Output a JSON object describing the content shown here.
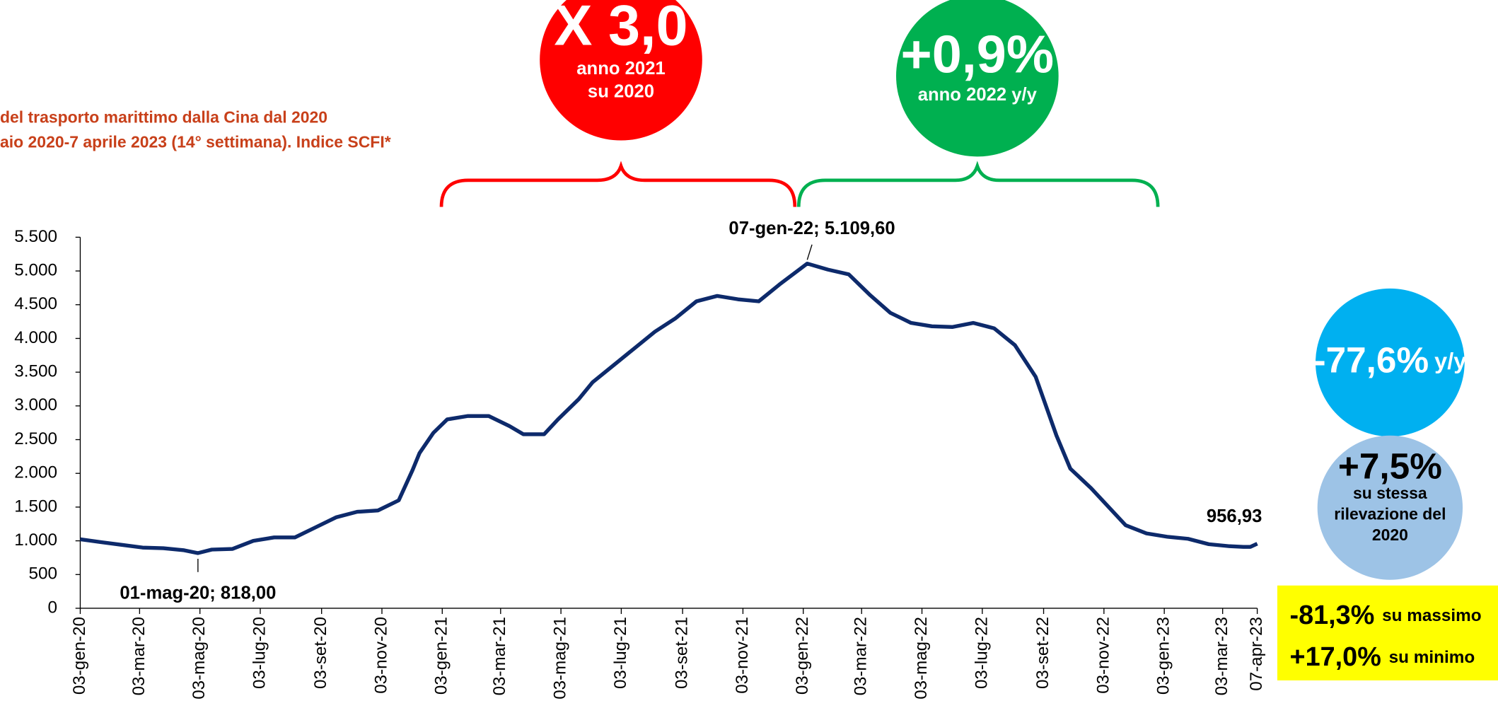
{
  "chart_data": {
    "type": "line",
    "title_lines": [
      "del trasporto marittimo dalla Cina dal 2020",
      "aio 2020-7 aprile 2023 (14° settimana). Indice SCFI*"
    ],
    "x": [
      "03-gen-20",
      "24-gen-20",
      "14-feb-20",
      "06-mar-20",
      "27-mar-20",
      "17-apr-20",
      "01-mag-20",
      "15-mag-20",
      "05-giu-20",
      "26-giu-20",
      "17-lug-20",
      "07-ago-20",
      "28-ago-20",
      "18-set-20",
      "09-ott-20",
      "30-ott-20",
      "20-nov-20",
      "04-dic-20",
      "11-dic-20",
      "25-dic-20",
      "08-gen-21",
      "29-gen-21",
      "19-feb-21",
      "12-mar-21",
      "26-mar-21",
      "16-apr-21",
      "30-apr-21",
      "21-mag-21",
      "04-giu-21",
      "25-giu-21",
      "16-lug-21",
      "06-ago-21",
      "27-ago-21",
      "17-set-21",
      "08-ott-21",
      "29-ott-21",
      "19-nov-21",
      "10-dic-21",
      "07-gen-22",
      "28-gen-22",
      "18-feb-22",
      "11-mar-22",
      "01-apr-22",
      "22-apr-22",
      "13-mag-22",
      "03-giu-22",
      "24-giu-22",
      "15-lug-22",
      "05-ago-22",
      "26-ago-22",
      "16-set-22",
      "30-set-22",
      "21-ott-22",
      "11-nov-22",
      "25-nov-22",
      "16-dic-22",
      "06-gen-23",
      "27-gen-23",
      "17-feb-23",
      "10-mar-23",
      "24-mar-23",
      "31-mar-23",
      "07-apr-23"
    ],
    "series": [
      {
        "name": "SCFI",
        "color": "#0d2a6b",
        "values": [
          1023,
          980,
          940,
          900,
          890,
          860,
          818,
          870,
          880,
          1000,
          1050,
          1050,
          1200,
          1350,
          1430,
          1450,
          1600,
          2050,
          2300,
          2600,
          2800,
          2850,
          2850,
          2700,
          2580,
          2580,
          2800,
          3100,
          3350,
          3600,
          3850,
          4100,
          4300,
          4550,
          4630,
          4580,
          4550,
          4800,
          5109.6,
          5020,
          4950,
          4650,
          4380,
          4230,
          4180,
          4170,
          4230,
          4150,
          3900,
          3430,
          2560,
          2070,
          1780,
          1450,
          1230,
          1110,
          1060,
          1030,
          950,
          920,
          910,
          910,
          956.93
        ],
        "value_labels": [
          null,
          null,
          null,
          null,
          null,
          null,
          "01-mag-20; 818,00",
          null,
          null,
          null,
          null,
          null,
          null,
          null,
          null,
          null,
          null,
          null,
          null,
          null,
          null,
          null,
          null,
          null,
          null,
          null,
          null,
          null,
          null,
          null,
          null,
          null,
          null,
          null,
          null,
          null,
          null,
          null,
          "07-gen-22; 5.109,60",
          null,
          null,
          null,
          null,
          null,
          null,
          null,
          null,
          null,
          null,
          null,
          null,
          null,
          null,
          null,
          null,
          null,
          null,
          null,
          null,
          null,
          null,
          null,
          "956,93"
        ]
      }
    ],
    "xlim": [
      "03-gen-20",
      "07-apr-23"
    ],
    "xticks": [
      "03-gen-20",
      "03-mar-20",
      "03-mag-20",
      "03-lug-20",
      "03-set-20",
      "03-nov-20",
      "03-gen-21",
      "03-mar-21",
      "03-mag-21",
      "03-lug-21",
      "03-set-21",
      "03-nov-21",
      "03-gen-22",
      "03-mar-22",
      "03-mag-22",
      "03-lug-22",
      "03-set-22",
      "03-nov-22",
      "03-gen-23",
      "03-mar-23",
      "07-apr-23"
    ],
    "ylim": [
      0,
      5500
    ],
    "yticks": [
      0,
      500,
      {
        "value": 1000,
        "label": "1.000"
      },
      {
        "value": 1500,
        "label": "1.500"
      },
      {
        "value": 2000,
        "label": "2.000"
      },
      {
        "value": 2500,
        "label": "2.500"
      },
      {
        "value": 3000,
        "label": "3.000"
      },
      {
        "value": 3500,
        "label": "3.500"
      },
      {
        "value": 4000,
        "label": "4.000"
      },
      {
        "value": 4500,
        "label": "4.500"
      },
      {
        "value": 5000,
        "label": "5.000"
      },
      {
        "value": 5500,
        "label": "5.500"
      }
    ],
    "badges": [
      {
        "headline": "X 3,0",
        "lines": [
          "anno 2021",
          "su 2020"
        ],
        "color": "#ff0000"
      },
      {
        "headline": "+0,9%",
        "lines": [
          "anno 2022 y/y"
        ],
        "color": "#00b050"
      },
      {
        "headline": "-77,6%",
        "suffix": "y/y",
        "color": "#00b0f0"
      },
      {
        "headline": "+7,5%",
        "lines": [
          "su stessa",
          "rilevazione del",
          "2020"
        ],
        "color": "#9dc3e6"
      }
    ],
    "summary_box": {
      "color": "#ffff00",
      "rows": [
        {
          "figure": "-81,3%",
          "note": "su massimo"
        },
        {
          "figure": "+17,0%",
          "note": "su minimo"
        }
      ]
    }
  }
}
